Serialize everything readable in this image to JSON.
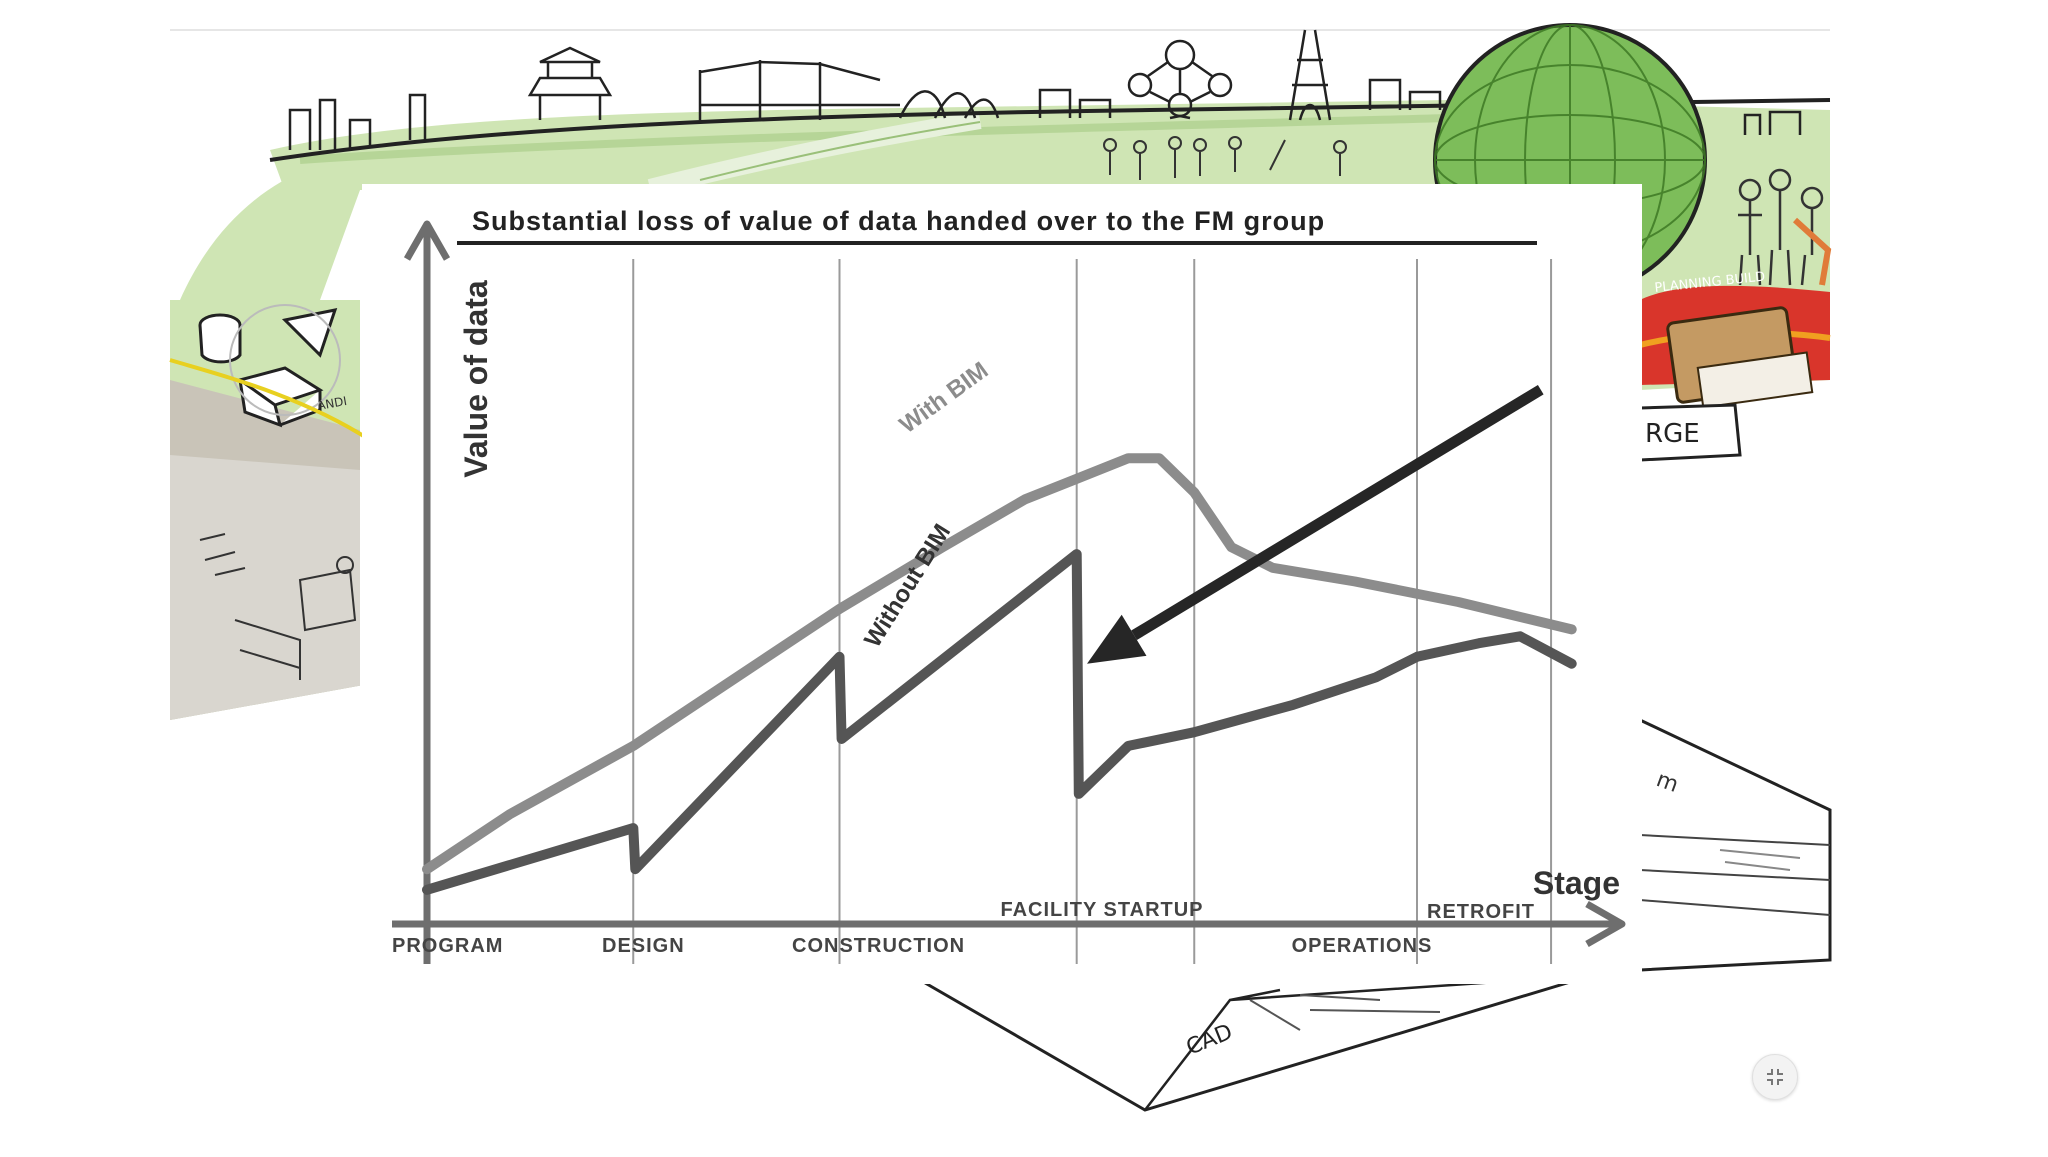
{
  "illustration": {
    "sign_text": "RGE",
    "planning_text": "PLANNING BUILD",
    "cad_text": "CAD",
    "leaflet_text": "ANDI",
    "doc_text": "m"
  },
  "chart_data": {
    "type": "line",
    "title": "Substantial loss of value of data handed over to the FM group",
    "xlabel": "Stage",
    "ylabel": "Value of data",
    "stages": [
      "PROGRAM",
      "DESIGN",
      "CONSTRUCTION",
      "FACILITY STARTUP",
      "OPERATIONS",
      "RETROFIT"
    ],
    "stage_boundaries": [
      0,
      1,
      2,
      3.15,
      3.72,
      4.8,
      5.45
    ],
    "xlim": [
      0,
      5.6
    ],
    "ylim": [
      0,
      10
    ],
    "grid": true,
    "series": [
      {
        "name": "With BIM",
        "points": [
          [
            0,
            0.8
          ],
          [
            0.4,
            1.6
          ],
          [
            1,
            2.6
          ],
          [
            1.5,
            3.6
          ],
          [
            2,
            4.6
          ],
          [
            2.5,
            5.5
          ],
          [
            2.9,
            6.2
          ],
          [
            3.15,
            6.5
          ],
          [
            3.4,
            6.8
          ],
          [
            3.55,
            6.8
          ],
          [
            3.72,
            6.3
          ],
          [
            3.9,
            5.5
          ],
          [
            4.1,
            5.2
          ],
          [
            4.5,
            5.0
          ],
          [
            5,
            4.7
          ],
          [
            5.55,
            4.3
          ]
        ]
      },
      {
        "name": "Without BIM",
        "points": [
          [
            0,
            0.5
          ],
          [
            1,
            1.4
          ],
          [
            1.01,
            0.8
          ],
          [
            2,
            3.9
          ],
          [
            2.01,
            2.7
          ],
          [
            3.15,
            5.4
          ],
          [
            3.16,
            1.9
          ],
          [
            3.4,
            2.6
          ],
          [
            3.72,
            2.8
          ],
          [
            4.2,
            3.2
          ],
          [
            4.6,
            3.6
          ],
          [
            4.8,
            3.9
          ],
          [
            5.1,
            4.1
          ],
          [
            5.3,
            4.2
          ],
          [
            5.55,
            3.8
          ]
        ]
      }
    ],
    "annotation": {
      "type": "arrow",
      "from": [
        5.4,
        7.8
      ],
      "to": [
        3.2,
        3.8
      ]
    }
  }
}
